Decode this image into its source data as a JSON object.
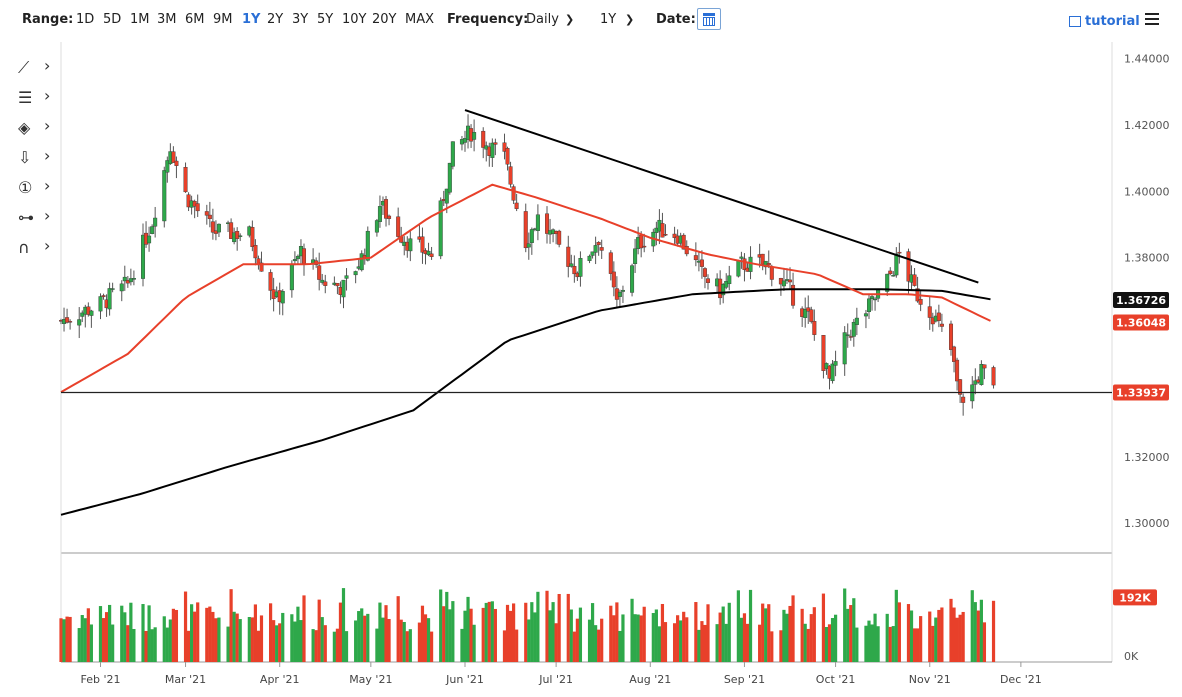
{
  "toolbar": {
    "range_label": "Range:",
    "ranges": [
      "1D",
      "5D",
      "1M",
      "3M",
      "6M",
      "9M",
      "1Y",
      "2Y",
      "3Y",
      "5Y",
      "10Y",
      "20Y",
      "MAX"
    ],
    "active_range": "1Y",
    "frequency_label": "Frequency:",
    "frequency_value": "Daily",
    "period_value": "1Y",
    "date_label": "Date:",
    "tutorial_label": "tutorial",
    "icons": {
      "calendar": "calendar-icon",
      "tutorial": "film-icon",
      "menu": "hamburger-menu-icon",
      "chevron": "chevron-down-icon"
    }
  },
  "sidebar_tools": [
    {
      "name": "line-tool-icon",
      "glyph": "⟋"
    },
    {
      "name": "fib-tool-icon",
      "glyph": "☰"
    },
    {
      "name": "shape-tool-icon",
      "glyph": "◈"
    },
    {
      "name": "arrow-tool-icon",
      "glyph": "⇩"
    },
    {
      "name": "annotation-tool-icon",
      "glyph": "①"
    },
    {
      "name": "measure-tool-icon",
      "glyph": "⊶"
    },
    {
      "name": "magnet-tool-icon",
      "glyph": "∩"
    }
  ],
  "chart_data": {
    "type": "candlestick",
    "title": "",
    "xlabel": "",
    "ylabel": "",
    "y_ticks": [
      "1.44000",
      "1.42000",
      "1.40000",
      "1.38000",
      "1.36000",
      "1.34000",
      "1.32000",
      "1.30000"
    ],
    "y_tick_values": [
      1.44,
      1.42,
      1.4,
      1.38,
      1.36,
      1.34,
      1.32,
      1.3
    ],
    "ylim": [
      1.291,
      1.445
    ],
    "x_ticks": [
      "Feb '21",
      "Mar '21",
      "Apr '21",
      "May '21",
      "Jun '21",
      "Jul '21",
      "Aug '21",
      "Sep '21",
      "Oct '21",
      "Nov '21",
      "Dec '21"
    ],
    "x_range": [
      "2021-01-19",
      "2021-12-31"
    ],
    "last_price": 1.33937,
    "last_price_label": "1.33937",
    "ma_labels": [
      {
        "name": "sma-200",
        "value": 1.36726,
        "label": "1.36726",
        "color": "#000000"
      },
      {
        "name": "sma-50",
        "value": 1.36048,
        "label": "1.36048",
        "color": "#e8402a"
      }
    ],
    "horizontal_line": 1.33937,
    "trendline": {
      "from": [
        "2021-06-01",
        1.4245
      ],
      "to": [
        "2021-11-17",
        1.3725
      ]
    },
    "close_keypoints": [
      [
        "2021-01-19",
        1.361
      ],
      [
        "2021-02-01",
        1.366
      ],
      [
        "2021-02-10",
        1.372
      ],
      [
        "2021-02-18",
        1.391
      ],
      [
        "2021-02-24",
        1.414
      ],
      [
        "2021-03-01",
        1.399
      ],
      [
        "2021-03-10",
        1.388
      ],
      [
        "2021-03-22",
        1.387
      ],
      [
        "2021-03-31",
        1.367
      ],
      [
        "2021-04-08",
        1.382
      ],
      [
        "2021-04-15",
        1.373
      ],
      [
        "2021-04-22",
        1.371
      ],
      [
        "2021-04-28",
        1.38
      ],
      [
        "2021-05-04",
        1.396
      ],
      [
        "2021-05-10",
        1.388
      ],
      [
        "2021-05-14",
        1.384
      ],
      [
        "2021-05-21",
        1.381
      ],
      [
        "2021-05-28",
        1.412
      ],
      [
        "2021-06-03",
        1.418
      ],
      [
        "2021-06-10",
        1.413
      ],
      [
        "2021-06-14",
        1.41
      ],
      [
        "2021-06-21",
        1.385
      ],
      [
        "2021-06-25",
        1.392
      ],
      [
        "2021-07-02",
        1.383
      ],
      [
        "2021-07-08",
        1.376
      ],
      [
        "2021-07-15",
        1.386
      ],
      [
        "2021-07-21",
        1.366
      ],
      [
        "2021-07-28",
        1.384
      ],
      [
        "2021-08-03",
        1.389
      ],
      [
        "2021-08-10",
        1.387
      ],
      [
        "2021-08-18",
        1.375
      ],
      [
        "2021-08-24",
        1.37
      ],
      [
        "2021-08-31",
        1.378
      ],
      [
        "2021-09-08",
        1.378
      ],
      [
        "2021-09-15",
        1.371
      ],
      [
        "2021-09-22",
        1.362
      ],
      [
        "2021-09-29",
        1.343
      ],
      [
        "2021-10-05",
        1.357
      ],
      [
        "2021-10-12",
        1.365
      ],
      [
        "2021-10-18",
        1.373
      ],
      [
        "2021-10-22",
        1.381
      ],
      [
        "2021-10-27",
        1.37
      ],
      [
        "2021-11-02",
        1.363
      ],
      [
        "2021-11-08",
        1.352
      ],
      [
        "2021-11-11",
        1.337
      ],
      [
        "2021-11-15",
        1.341
      ],
      [
        "2021-11-18",
        1.346
      ],
      [
        "2021-11-22",
        1.34
      ]
    ],
    "sma50_keypoints": [
      [
        "2021-01-19",
        1.3395
      ],
      [
        "2021-02-10",
        1.351
      ],
      [
        "2021-03-01",
        1.368
      ],
      [
        "2021-03-20",
        1.378
      ],
      [
        "2021-04-10",
        1.378
      ],
      [
        "2021-05-01",
        1.38
      ],
      [
        "2021-05-20",
        1.392
      ],
      [
        "2021-06-10",
        1.402
      ],
      [
        "2021-06-25",
        1.398
      ],
      [
        "2021-07-15",
        1.392
      ],
      [
        "2021-08-01",
        1.386
      ],
      [
        "2021-08-20",
        1.381
      ],
      [
        "2021-09-05",
        1.378
      ],
      [
        "2021-09-25",
        1.375
      ],
      [
        "2021-10-10",
        1.369
      ],
      [
        "2021-10-25",
        1.369
      ],
      [
        "2021-11-05",
        1.368
      ],
      [
        "2021-11-22",
        1.3605
      ]
    ],
    "sma200_keypoints": [
      [
        "2021-01-19",
        1.3025
      ],
      [
        "2021-02-15",
        1.309
      ],
      [
        "2021-03-15",
        1.317
      ],
      [
        "2021-04-15",
        1.325
      ],
      [
        "2021-05-15",
        1.334
      ],
      [
        "2021-06-15",
        1.355
      ],
      [
        "2021-07-15",
        1.364
      ],
      [
        "2021-08-15",
        1.369
      ],
      [
        "2021-09-15",
        1.3705
      ],
      [
        "2021-10-15",
        1.3705
      ],
      [
        "2021-11-05",
        1.37
      ],
      [
        "2021-11-22",
        1.3673
      ]
    ],
    "volume": {
      "ylim": [
        0,
        300000
      ],
      "y_ticks": [
        "0K"
      ],
      "last_label": "192K",
      "last_value": 192000
    },
    "colors": {
      "up": "#2ea84a",
      "down": "#e8402a",
      "sma50": "#e8402a",
      "sma200": "#000000",
      "last": "#e8402a",
      "trend": "#000000"
    },
    "grid": false
  }
}
